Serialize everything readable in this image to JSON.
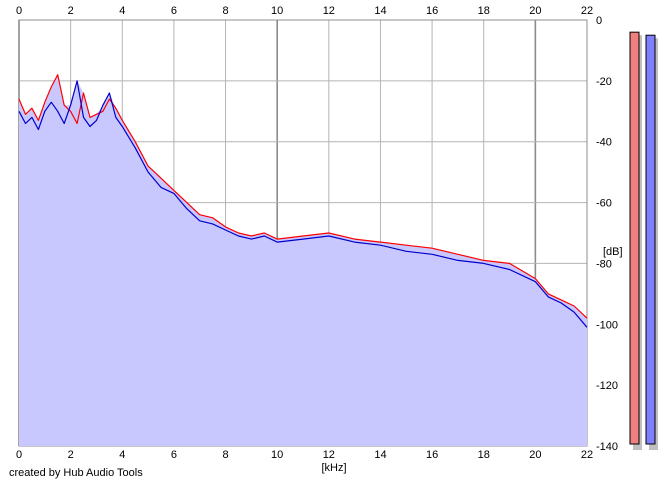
{
  "footer": {
    "credit": "created by Hub Audio Tools"
  },
  "colors": {
    "fill": "#c8c8ff",
    "grid": "#b4b4b4",
    "grid_major": "#8c8c8c",
    "series_left": "#ff0000",
    "series_right": "#0000cc",
    "meter_left": "#f08080",
    "meter_right": "#8080ff",
    "meter_shadow": "#c0c0c0"
  },
  "level_meters": [
    {
      "name": "left",
      "level_db": -4
    },
    {
      "name": "right",
      "level_db": -5
    }
  ],
  "chart_data": {
    "type": "area",
    "title": "",
    "xlabel": "[kHz]",
    "ylabel": "[dB]",
    "xlim": [
      0,
      22
    ],
    "ylim": [
      -140,
      0
    ],
    "x_ticks": [
      "0",
      "2",
      "4",
      "6",
      "8",
      "10",
      "12",
      "14",
      "16",
      "18",
      "20",
      "22"
    ],
    "y_ticks": [
      "0",
      "-20",
      "-40",
      "-60",
      "-80",
      "-100",
      "-120",
      "-140"
    ],
    "grid": true,
    "x": [
      0,
      0.25,
      0.5,
      0.75,
      1.0,
      1.25,
      1.5,
      1.75,
      2.0,
      2.25,
      2.5,
      2.75,
      3.0,
      3.25,
      3.5,
      3.75,
      4.0,
      4.5,
      5.0,
      5.5,
      6.0,
      6.5,
      7.0,
      7.5,
      8.0,
      8.5,
      9.0,
      9.5,
      10.0,
      11.0,
      12.0,
      13.0,
      14.0,
      15.0,
      16.0,
      17.0,
      18.0,
      19.0,
      20.0,
      20.5,
      21.0,
      21.5,
      22.0
    ],
    "series": [
      {
        "values": [
          -26,
          -31,
          -29,
          -33,
          -27,
          -22,
          -18,
          -28,
          -30,
          -34,
          -24,
          -32,
          -31,
          -30,
          -26,
          -29,
          -33,
          -40,
          -48,
          -52,
          -56,
          -60,
          -64,
          -65,
          -68,
          -70,
          -71,
          -70,
          -72,
          -71,
          -70,
          -72,
          -73,
          -74,
          -75,
          -77,
          -79,
          -80,
          -85,
          -90,
          -92,
          -94,
          -98
        ]
      },
      {
        "values": [
          -30,
          -34,
          -32,
          -36,
          -30,
          -27,
          -30,
          -34,
          -28,
          -20,
          -32,
          -35,
          -33,
          -28,
          -24,
          -32,
          -35,
          -42,
          -50,
          -55,
          -57,
          -62,
          -66,
          -67,
          -69,
          -71,
          -72,
          -71,
          -73,
          -72,
          -71,
          -73,
          -74,
          -76,
          -77,
          -79,
          -80,
          -82,
          -86,
          -91,
          -93,
          -96,
          -101
        ]
      }
    ]
  }
}
